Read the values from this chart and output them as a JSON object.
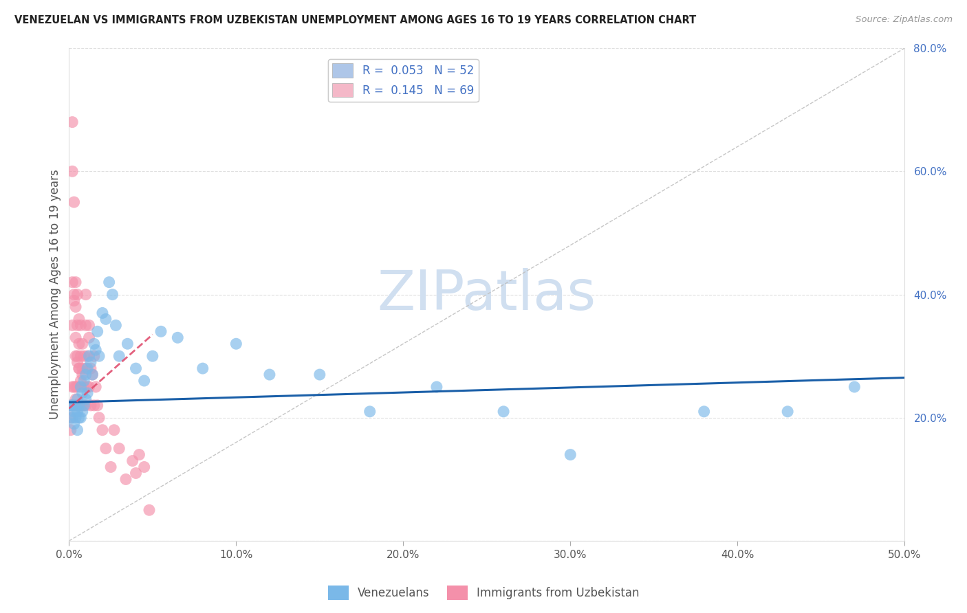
{
  "title": "VENEZUELAN VS IMMIGRANTS FROM UZBEKISTAN UNEMPLOYMENT AMONG AGES 16 TO 19 YEARS CORRELATION CHART",
  "source": "Source: ZipAtlas.com",
  "ylabel": "Unemployment Among Ages 16 to 19 years",
  "xlim": [
    0,
    0.5
  ],
  "ylim": [
    0,
    0.8
  ],
  "xticks": [
    0.0,
    0.1,
    0.2,
    0.3,
    0.4,
    0.5
  ],
  "yticks": [
    0.0,
    0.2,
    0.4,
    0.6,
    0.8
  ],
  "xtick_labels": [
    "0.0%",
    "10.0%",
    "20.0%",
    "30.0%",
    "40.0%",
    "50.0%"
  ],
  "ytick_labels": [
    "",
    "20.0%",
    "40.0%",
    "60.0%",
    "80.0%"
  ],
  "legend_label1": "R =  0.053   N = 52",
  "legend_label2": "R =  0.145   N = 69",
  "legend_color1": "#aec6e8",
  "legend_color2": "#f4b8c8",
  "watermark_text": "ZIPatlas",
  "watermark_color": "#d0dff0",
  "blue_color": "#7ab8e8",
  "pink_color": "#f490aa",
  "trend_blue_color": "#1a5fa8",
  "trend_pink_color": "#e05070",
  "axis_color": "#4472c4",
  "label_color": "#555555",
  "grid_color": "#e0e0e0",
  "title_color": "#222222",
  "venezuelan_x": [
    0.001,
    0.002,
    0.002,
    0.003,
    0.003,
    0.004,
    0.004,
    0.005,
    0.005,
    0.005,
    0.006,
    0.006,
    0.007,
    0.007,
    0.008,
    0.008,
    0.009,
    0.009,
    0.01,
    0.01,
    0.011,
    0.011,
    0.012,
    0.013,
    0.014,
    0.015,
    0.016,
    0.017,
    0.018,
    0.02,
    0.022,
    0.024,
    0.026,
    0.028,
    0.03,
    0.035,
    0.04,
    0.045,
    0.05,
    0.055,
    0.065,
    0.08,
    0.1,
    0.12,
    0.15,
    0.18,
    0.22,
    0.26,
    0.3,
    0.38,
    0.43,
    0.47
  ],
  "venezuelan_y": [
    0.22,
    0.2,
    0.22,
    0.21,
    0.19,
    0.22,
    0.2,
    0.23,
    0.21,
    0.18,
    0.22,
    0.2,
    0.25,
    0.2,
    0.24,
    0.21,
    0.26,
    0.22,
    0.27,
    0.23,
    0.28,
    0.24,
    0.3,
    0.29,
    0.27,
    0.32,
    0.31,
    0.34,
    0.3,
    0.37,
    0.36,
    0.42,
    0.4,
    0.35,
    0.3,
    0.32,
    0.28,
    0.26,
    0.3,
    0.34,
    0.33,
    0.28,
    0.32,
    0.27,
    0.27,
    0.21,
    0.25,
    0.21,
    0.14,
    0.21,
    0.21,
    0.25
  ],
  "uzbekistan_x": [
    0.001,
    0.001,
    0.001,
    0.002,
    0.002,
    0.002,
    0.002,
    0.002,
    0.003,
    0.003,
    0.003,
    0.003,
    0.004,
    0.004,
    0.004,
    0.004,
    0.004,
    0.005,
    0.005,
    0.005,
    0.005,
    0.005,
    0.006,
    0.006,
    0.006,
    0.006,
    0.007,
    0.007,
    0.007,
    0.007,
    0.008,
    0.008,
    0.008,
    0.009,
    0.009,
    0.01,
    0.01,
    0.01,
    0.011,
    0.011,
    0.012,
    0.012,
    0.013,
    0.013,
    0.014,
    0.015,
    0.016,
    0.017,
    0.018,
    0.02,
    0.022,
    0.025,
    0.027,
    0.03,
    0.034,
    0.038,
    0.04,
    0.042,
    0.045,
    0.048,
    0.002,
    0.003,
    0.004,
    0.005,
    0.006,
    0.008,
    0.01,
    0.012,
    0.015
  ],
  "uzbekistan_y": [
    0.22,
    0.2,
    0.18,
    0.68,
    0.6,
    0.35,
    0.25,
    0.22,
    0.55,
    0.4,
    0.25,
    0.22,
    0.42,
    0.38,
    0.3,
    0.25,
    0.23,
    0.4,
    0.35,
    0.3,
    0.25,
    0.22,
    0.36,
    0.32,
    0.28,
    0.22,
    0.35,
    0.3,
    0.26,
    0.22,
    0.32,
    0.28,
    0.22,
    0.3,
    0.25,
    0.35,
    0.28,
    0.22,
    0.3,
    0.25,
    0.33,
    0.25,
    0.28,
    0.22,
    0.27,
    0.22,
    0.25,
    0.22,
    0.2,
    0.18,
    0.15,
    0.12,
    0.18,
    0.15,
    0.1,
    0.13,
    0.11,
    0.14,
    0.12,
    0.05,
    0.42,
    0.39,
    0.33,
    0.29,
    0.28,
    0.27,
    0.4,
    0.35,
    0.3
  ]
}
